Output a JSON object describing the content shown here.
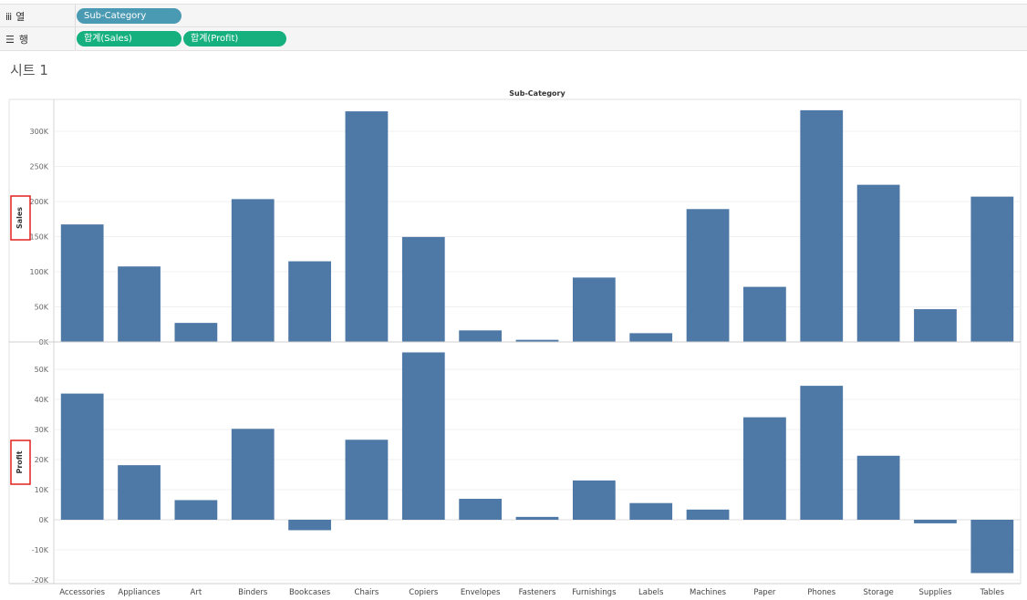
{
  "shelves": {
    "columns": {
      "label": "열",
      "icon": "columns-icon",
      "pills": [
        "Sub-Category"
      ]
    },
    "rows": {
      "label": "행",
      "icon": "rows-icon",
      "pills": [
        "합계(Sales)",
        "합계(Profit)"
      ]
    }
  },
  "sheet_title": "시트 1",
  "colors": {
    "bar": "#4e79a7",
    "pill_dimension": "#4b9ab3",
    "pill_measure": "#16b07e",
    "highlight_box": "#e0201b"
  },
  "chart_data": [
    {
      "type": "bar",
      "title": "Sub-Category",
      "ylabel": "Sales",
      "categories": [
        "Accessories",
        "Appliances",
        "Art",
        "Binders",
        "Bookcases",
        "Chairs",
        "Copiers",
        "Envelopes",
        "Fasteners",
        "Furnishings",
        "Labels",
        "Machines",
        "Paper",
        "Phones",
        "Storage",
        "Supplies",
        "Tables"
      ],
      "values": [
        167380,
        107532,
        27119,
        203413,
        114880,
        328449,
        149528,
        16476,
        3024,
        91705,
        12486,
        189239,
        78479,
        330007,
        223844,
        46674,
        206966
      ],
      "ylim": [
        0,
        340000
      ],
      "yticks": [
        0,
        50000,
        100000,
        150000,
        200000,
        250000,
        300000
      ],
      "yticklabels": [
        "0K",
        "50K",
        "100K",
        "150K",
        "200K",
        "250K",
        "300K"
      ],
      "grid": true
    },
    {
      "type": "bar",
      "ylabel": "Profit",
      "categories": [
        "Accessories",
        "Appliances",
        "Art",
        "Binders",
        "Bookcases",
        "Chairs",
        "Copiers",
        "Envelopes",
        "Fasteners",
        "Furnishings",
        "Labels",
        "Machines",
        "Paper",
        "Phones",
        "Storage",
        "Supplies",
        "Tables"
      ],
      "values": [
        41937,
        18138,
        6528,
        30222,
        -3473,
        26590,
        55618,
        6964,
        950,
        13059,
        5546,
        3385,
        34054,
        44516,
        21279,
        -1189,
        -17725
      ],
      "ylim": [
        -20000,
        56000
      ],
      "yticks": [
        -20000,
        -10000,
        0,
        10000,
        20000,
        30000,
        40000,
        50000
      ],
      "yticklabels": [
        "-20K",
        "-10K",
        "0K",
        "10K",
        "20K",
        "30K",
        "40K",
        "50K"
      ],
      "grid": true
    }
  ]
}
